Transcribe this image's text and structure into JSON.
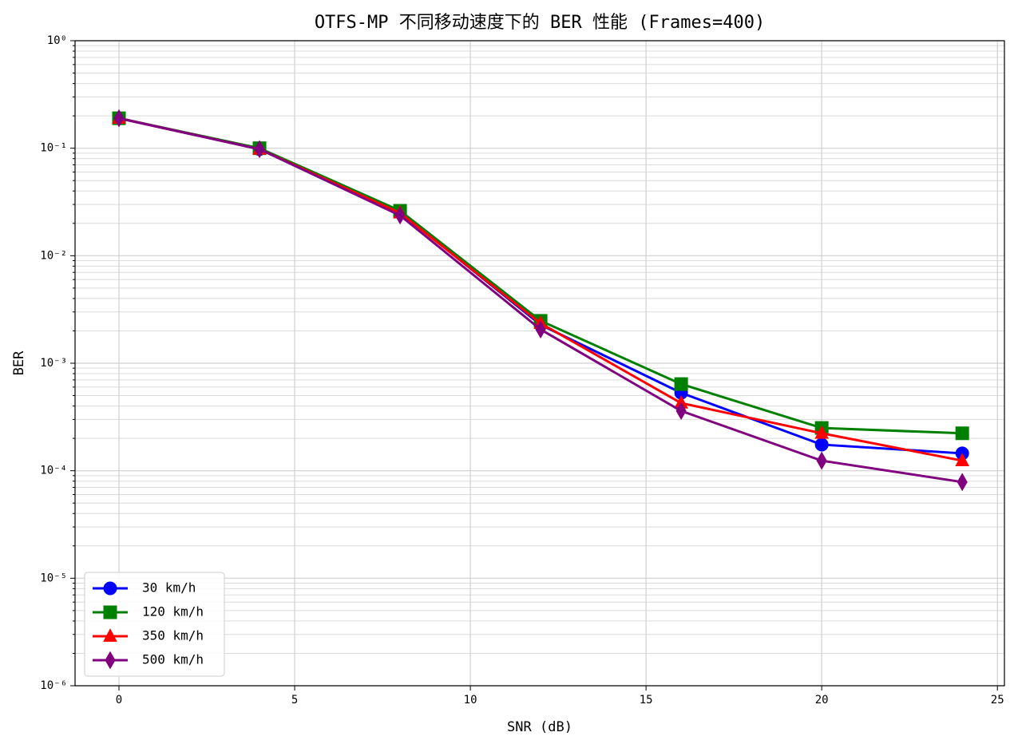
{
  "chart_data": {
    "type": "line",
    "title": "OTFS-MP 不同移动速度下的 BER 性能 (Frames=400)",
    "x_label": "SNR (dB)",
    "y_label": "BER",
    "x": [
      0,
      4,
      8,
      12,
      16,
      20,
      24
    ],
    "series": [
      {
        "name": "30 km/h",
        "color": "#0000ff",
        "marker": "circle",
        "values": [
          0.19,
          0.098,
          0.0254,
          0.00228,
          0.00053,
          0.000175,
          0.000145
        ]
      },
      {
        "name": "120 km/h",
        "color": "#008000",
        "marker": "square",
        "values": [
          0.19,
          0.1,
          0.0262,
          0.00248,
          0.00064,
          0.00025,
          0.000223
        ]
      },
      {
        "name": "350 km/h",
        "color": "#ff0000",
        "marker": "triangle",
        "values": [
          0.19,
          0.098,
          0.025,
          0.00235,
          0.000426,
          0.000223,
          0.000124
        ]
      },
      {
        "name": "500 km/h",
        "color": "#800080",
        "marker": "diamond",
        "values": [
          0.19,
          0.098,
          0.0237,
          0.00206,
          0.00036,
          0.000124,
          7.85e-05
        ]
      }
    ],
    "xlim": [
      -1.25,
      25.2
    ],
    "xticks": [
      0,
      5,
      10,
      15,
      20,
      25
    ],
    "ylim": [
      1e-06,
      1
    ],
    "y_scale": "log",
    "yticks": [
      {
        "value": 1e-06,
        "label": "10⁻⁶"
      },
      {
        "value": 1e-05,
        "label": "10⁻⁵"
      },
      {
        "value": 0.0001,
        "label": "10⁻⁴"
      },
      {
        "value": 0.001,
        "label": "10⁻³"
      },
      {
        "value": 0.01,
        "label": "10⁻²"
      },
      {
        "value": 0.1,
        "label": "10⁻¹"
      },
      {
        "value": 1,
        "label": "10⁰"
      }
    ],
    "grid": true,
    "minor_grid": true,
    "legend": "lower left"
  }
}
